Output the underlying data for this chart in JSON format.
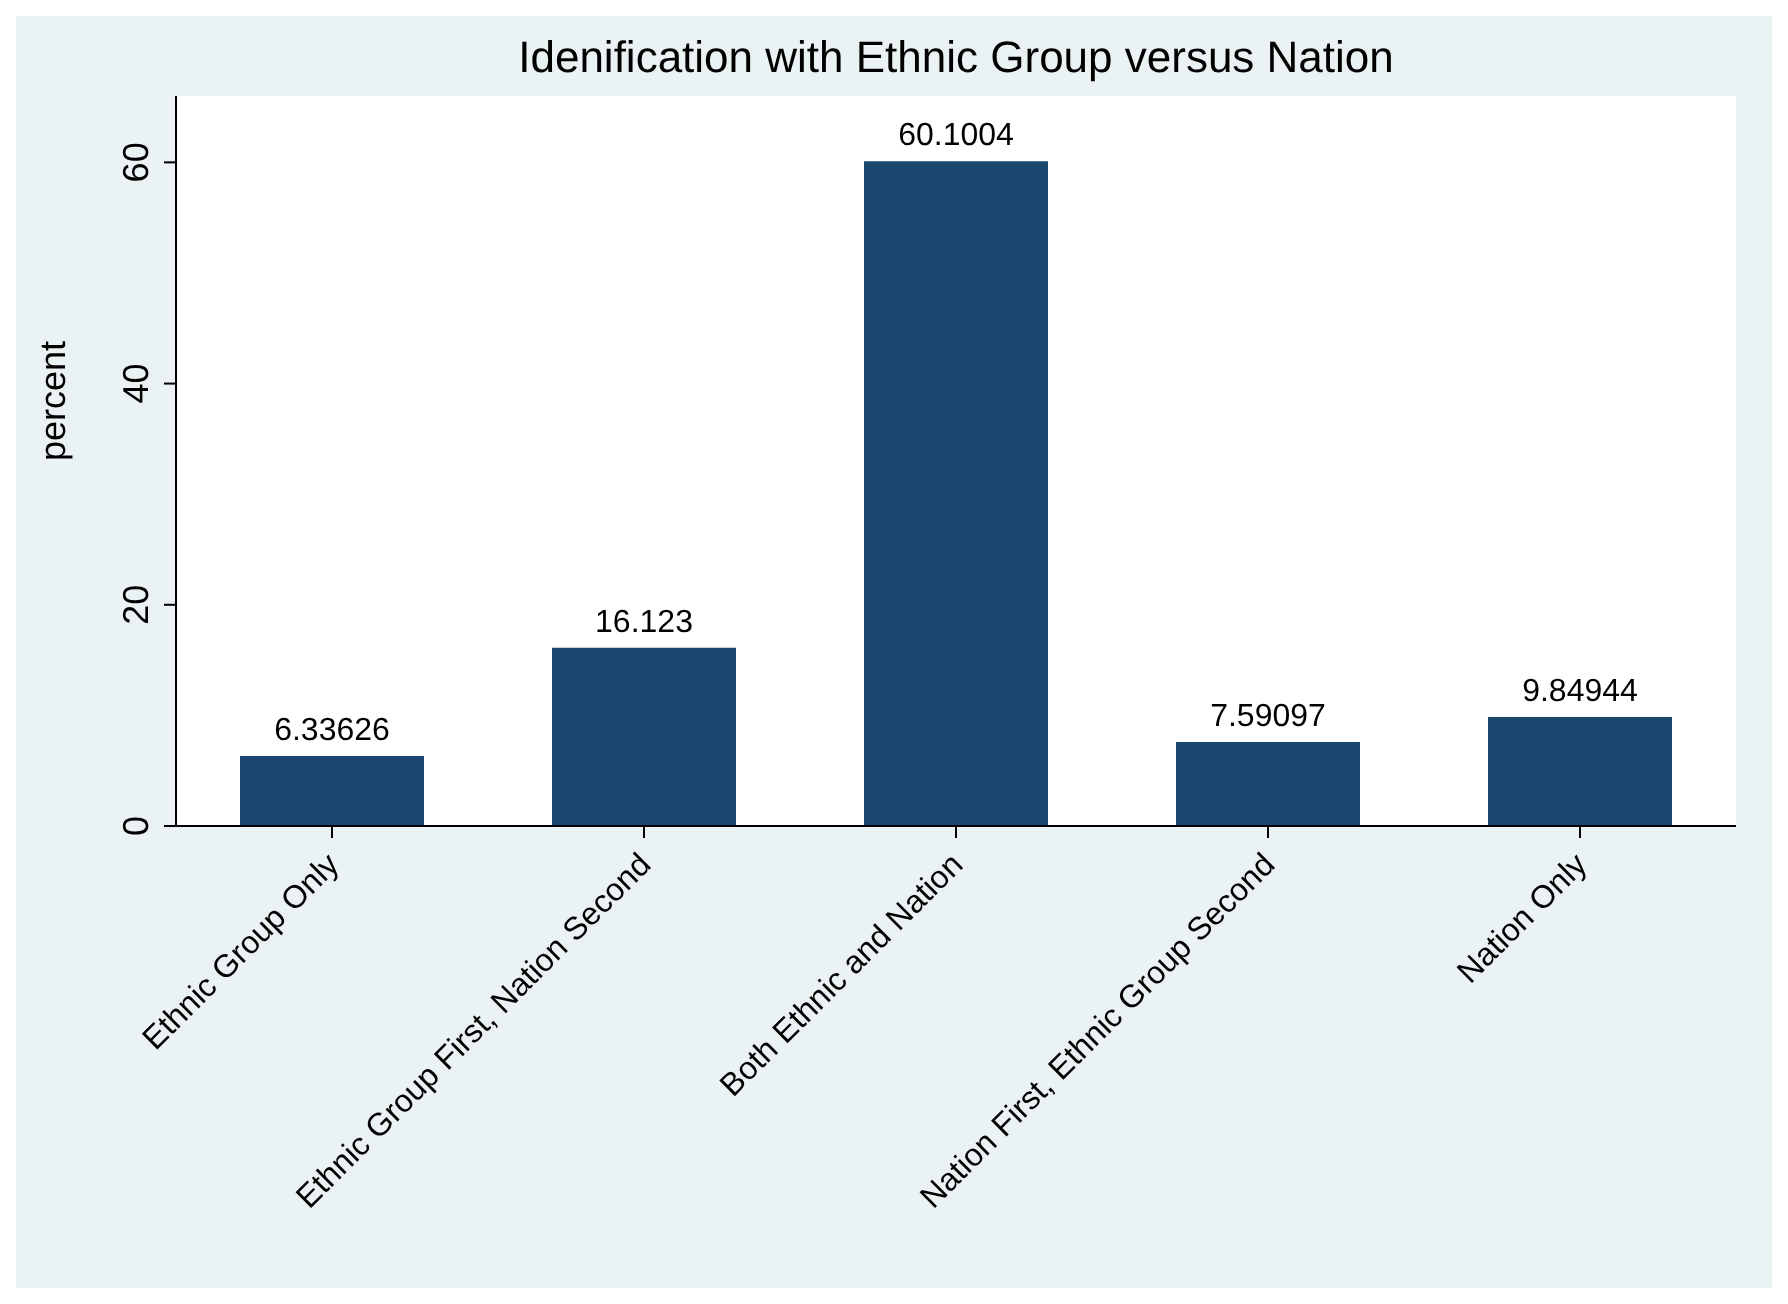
{
  "chart_data": {
    "type": "bar",
    "title": "Idenification with Ethnic Group versus Nation",
    "ylabel": "percent",
    "categories": [
      "Ethnic Group Only",
      "Ethnic Group First, Nation Second",
      "Both Ethnic and Nation",
      "Nation First, Ethnic Group Second",
      "Nation Only"
    ],
    "values": [
      6.33626,
      16.123,
      60.1004,
      7.59097,
      9.84944
    ],
    "color": "#1a476f",
    "ylim": [
      0,
      66
    ],
    "yticks": [
      0,
      20,
      40,
      60
    ],
    "data_labels": true,
    "grid": false
  }
}
